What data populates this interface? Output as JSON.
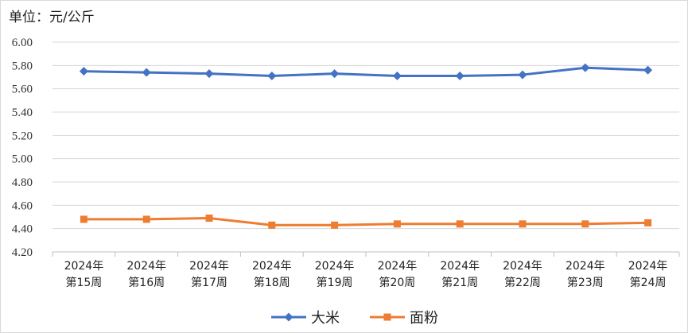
{
  "chart_data": {
    "type": "line",
    "unit_label": "单位：元/公斤",
    "categories": [
      [
        "2024年",
        "第15周"
      ],
      [
        "2024年",
        "第16周"
      ],
      [
        "2024年",
        "第17周"
      ],
      [
        "2024年",
        "第18周"
      ],
      [
        "2024年",
        "第19周"
      ],
      [
        "2024年",
        "第20周"
      ],
      [
        "2024年",
        "第21周"
      ],
      [
        "2024年",
        "第22周"
      ],
      [
        "2024年",
        "第23周"
      ],
      [
        "2024年",
        "第24周"
      ]
    ],
    "series": [
      {
        "name": "大米",
        "color": "#4472C4",
        "marker": "diamond",
        "values": [
          5.75,
          5.74,
          5.73,
          5.71,
          5.73,
          5.71,
          5.71,
          5.72,
          5.78,
          5.76
        ]
      },
      {
        "name": "面粉",
        "color": "#ED7D31",
        "marker": "square",
        "values": [
          4.48,
          4.48,
          4.49,
          4.43,
          4.43,
          4.44,
          4.44,
          4.44,
          4.44,
          4.45
        ]
      }
    ],
    "ylim": [
      4.2,
      6.0
    ],
    "yticks": [
      "4.20",
      "4.40",
      "4.60",
      "4.80",
      "5.00",
      "5.20",
      "5.40",
      "5.60",
      "5.80",
      "6.00"
    ],
    "grid": true,
    "legend": "bottom-center"
  }
}
